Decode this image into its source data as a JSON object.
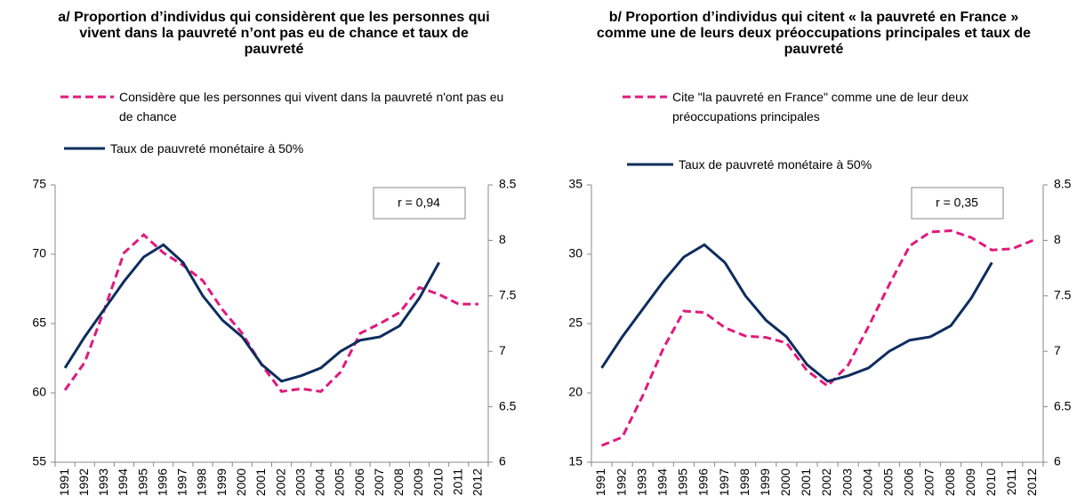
{
  "chart_data": [
    {
      "type": "line",
      "title": "a/ Proportion d’individus qui considèrent que les personnes qui vivent dans la pauvreté n’ont pas eu de chance et taux de pauvreté",
      "annotation": "r = 0,94",
      "categories": [
        "1991",
        "1992",
        "1993",
        "1994",
        "1995",
        "1996",
        "1997",
        "1998",
        "1999",
        "2000",
        "2001",
        "2002",
        "2003",
        "2004",
        "2005",
        "2006",
        "2007",
        "2008",
        "2009",
        "2010",
        "2011",
        "2012"
      ],
      "ylim": [
        55,
        75
      ],
      "yticks": [
        55,
        60,
        65,
        70,
        75
      ],
      "y2lim": [
        6,
        8.5
      ],
      "y2ticks": [
        6,
        6.5,
        7,
        7.5,
        8,
        8.5
      ],
      "series": [
        {
          "name": "Considère que les personnes qui vivent dans la pauvreté n'ont pas eu de chance",
          "color": "#e0197d",
          "dashed": true,
          "values": [
            60.2,
            62.2,
            66,
            70.1,
            71.4,
            70.1,
            69.2,
            68.1,
            66,
            64.3,
            62,
            60.1,
            60.3,
            60.1,
            61.5,
            64.3,
            65,
            65.8,
            67.6,
            67.1,
            66.4,
            66.4
          ]
        },
        {
          "name": "Taux de pauvreté monétaire à 50%",
          "color": "#0d2d5e",
          "dashed": false,
          "axis": "y2",
          "values": [
            6.85,
            7.13,
            7.38,
            7.63,
            7.85,
            7.96,
            7.8,
            7.5,
            7.28,
            7.13,
            6.88,
            6.73,
            6.78,
            6.85,
            7.0,
            7.1,
            7.13,
            7.23,
            7.48,
            7.8,
            null,
            null
          ]
        }
      ]
    },
    {
      "type": "line",
      "title": "b/ Proportion d’individus qui citent « la pauvreté en France » comme une de leurs deux préoccupations principales et taux de pauvreté",
      "annotation": "r = 0,35",
      "categories": [
        "1991",
        "1992",
        "1993",
        "1994",
        "1995",
        "1996",
        "1997",
        "1998",
        "1999",
        "2000",
        "2001",
        "2002",
        "2003",
        "2004",
        "2005",
        "2006",
        "2007",
        "2008",
        "2009",
        "2010",
        "2011",
        "2012"
      ],
      "ylim": [
        15,
        35
      ],
      "yticks": [
        15,
        20,
        25,
        30,
        35
      ],
      "y2lim": [
        6,
        8.5
      ],
      "y2ticks": [
        6,
        6.5,
        7,
        7.5,
        8,
        8.5
      ],
      "series": [
        {
          "name": "Cite \"la pauvreté en France\" comme une de leur deux préoccupations principales",
          "color": "#e0197d",
          "dashed": true,
          "values": [
            16.2,
            16.8,
            19.8,
            23.2,
            25.9,
            25.8,
            24.7,
            24.1,
            24.0,
            23.6,
            21.6,
            20.5,
            22,
            24.8,
            27.8,
            30.6,
            31.6,
            31.7,
            31.2,
            30.3,
            30.4,
            31
          ]
        },
        {
          "name": "Taux de pauvreté monétaire à 50%",
          "color": "#0d2d5e",
          "dashed": false,
          "axis": "y2",
          "values": [
            6.85,
            7.13,
            7.38,
            7.63,
            7.85,
            7.96,
            7.8,
            7.5,
            7.28,
            7.13,
            6.88,
            6.73,
            6.78,
            6.85,
            7.0,
            7.1,
            7.13,
            7.23,
            7.48,
            7.8,
            null,
            null
          ]
        }
      ]
    }
  ]
}
